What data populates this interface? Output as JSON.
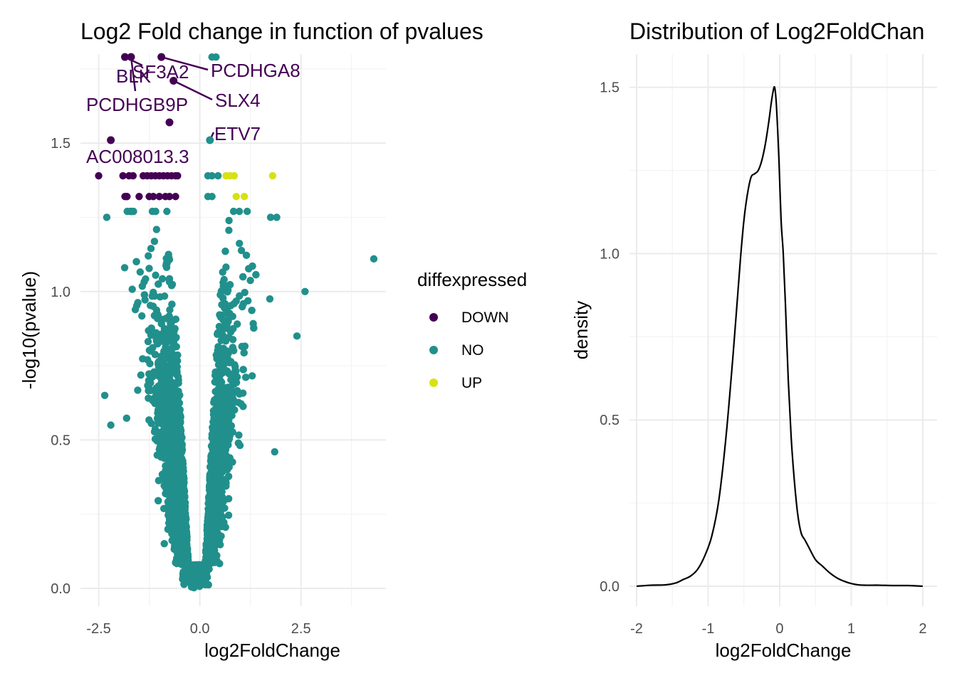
{
  "chart_data": [
    {
      "type": "scatter",
      "title": "Log2 Fold change in function of pvalues",
      "xlabel": "log2FoldChange",
      "ylabel": "-log10(pvalue)",
      "xlim": [
        -2.95,
        4.6
      ],
      "ylim": [
        -0.06,
        1.8
      ],
      "x_ticks": [
        -2.5,
        0.0,
        2.5
      ],
      "x_tick_labels": [
        "-2.5",
        "0.0",
        "2.5"
      ],
      "y_ticks": [
        0.0,
        0.5,
        1.0,
        1.5
      ],
      "y_tick_labels": [
        "0.0",
        "0.5",
        "1.0",
        "1.5"
      ],
      "grid": true,
      "legend": {
        "title": "diffexpressed",
        "placement": "right",
        "entries": [
          {
            "label": "DOWN",
            "color": "#440154"
          },
          {
            "label": "NO",
            "color": "#21908C"
          },
          {
            "label": "UP",
            "color": "#D6E215"
          }
        ]
      },
      "colors": {
        "DOWN": "#440154",
        "NO": "#21908C",
        "UP": "#D6E215"
      },
      "labeled_points": [
        {
          "label": "PCDHGA8",
          "x": -0.95,
          "y": 1.79
        },
        {
          "label": "SF3A2",
          "x": -1.85,
          "y": 1.79
        },
        {
          "label": "BLK",
          "x": -1.7,
          "y": 1.79
        },
        {
          "label": "SLX4",
          "x": -0.65,
          "y": 1.71
        },
        {
          "label": "PCDHGB9P",
          "x": -0.75,
          "y": 1.57
        },
        {
          "label": "ETV7",
          "x": 0.25,
          "y": 1.51,
          "group": "NO"
        },
        {
          "label": "AC008013.3",
          "x": -2.2,
          "y": 1.51
        }
      ],
      "down_points": [
        [
          -2.5,
          1.39
        ],
        [
          -1.9,
          1.39
        ],
        [
          -1.75,
          1.39
        ],
        [
          -1.65,
          1.39
        ],
        [
          -1.4,
          1.39
        ],
        [
          -1.3,
          1.39
        ],
        [
          -1.2,
          1.39
        ],
        [
          -1.1,
          1.39
        ],
        [
          -1.0,
          1.39
        ],
        [
          -0.9,
          1.39
        ],
        [
          -0.8,
          1.39
        ],
        [
          -0.7,
          1.39
        ],
        [
          -0.6,
          1.39
        ],
        [
          -0.55,
          1.39
        ],
        [
          -1.85,
          1.32
        ],
        [
          -1.8,
          1.32
        ],
        [
          -1.5,
          1.32
        ],
        [
          -1.25,
          1.32
        ],
        [
          -1.15,
          1.32
        ],
        [
          -1.0,
          1.32
        ],
        [
          -0.85,
          1.32
        ],
        [
          -0.75,
          1.32
        ],
        [
          -0.6,
          1.32
        ]
      ],
      "up_points": [
        [
          0.65,
          1.39
        ],
        [
          0.75,
          1.39
        ],
        [
          0.85,
          1.39
        ],
        [
          1.8,
          1.39
        ],
        [
          0.9,
          1.32
        ],
        [
          1.1,
          1.32
        ]
      ],
      "no_extreme_points": [
        [
          4.3,
          1.11
        ],
        [
          2.6,
          1.0
        ],
        [
          2.4,
          0.85
        ],
        [
          1.9,
          1.25
        ],
        [
          1.75,
          1.25
        ],
        [
          1.85,
          0.46
        ],
        [
          -2.3,
          1.25
        ],
        [
          -2.35,
          0.65
        ],
        [
          -2.2,
          0.55
        ],
        [
          0.3,
          1.79
        ],
        [
          0.4,
          1.79
        ],
        [
          0.3,
          1.39
        ],
        [
          0.2,
          1.39
        ],
        [
          0.45,
          1.39
        ],
        [
          0.2,
          1.32
        ],
        [
          0.3,
          1.32
        ]
      ],
      "no_cloud_description_free": true
    },
    {
      "type": "line",
      "title": "Distribution of Log2FoldChan",
      "xlabel": "log2FoldChange",
      "ylabel": "density",
      "xlim": [
        -2.1,
        2.2
      ],
      "ylim": [
        -0.06,
        1.6
      ],
      "x_ticks": [
        -2,
        -1,
        0,
        1,
        2
      ],
      "x_tick_labels": [
        "-2",
        "-1",
        "0",
        "1",
        "2"
      ],
      "y_ticks": [
        0.0,
        0.5,
        1.0,
        1.5
      ],
      "y_tick_labels": [
        "0.0",
        "0.5",
        "1.0",
        "1.5"
      ],
      "grid": true,
      "x": [
        -2.0,
        -1.8,
        -1.6,
        -1.45,
        -1.35,
        -1.25,
        -1.15,
        -1.05,
        -0.95,
        -0.85,
        -0.75,
        -0.65,
        -0.55,
        -0.5,
        -0.45,
        -0.4,
        -0.35,
        -0.3,
        -0.25,
        -0.2,
        -0.15,
        -0.12,
        -0.09,
        -0.07,
        -0.05,
        -0.03,
        -0.01,
        0.02,
        0.05,
        0.08,
        0.12,
        0.16,
        0.2,
        0.25,
        0.3,
        0.35,
        0.4,
        0.5,
        0.6,
        0.7,
        0.8,
        0.9,
        1.0,
        1.1,
        1.2,
        1.3,
        1.4,
        1.6,
        1.8,
        2.0
      ],
      "y": [
        0.0,
        0.003,
        0.004,
        0.01,
        0.02,
        0.03,
        0.05,
        0.09,
        0.15,
        0.26,
        0.45,
        0.7,
        0.98,
        1.1,
        1.18,
        1.23,
        1.24,
        1.25,
        1.28,
        1.33,
        1.4,
        1.45,
        1.49,
        1.5,
        1.46,
        1.38,
        1.28,
        1.1,
        1.0,
        0.85,
        0.62,
        0.45,
        0.33,
        0.22,
        0.16,
        0.14,
        0.12,
        0.08,
        0.06,
        0.04,
        0.025,
        0.015,
        0.008,
        0.004,
        0.003,
        0.003,
        0.003,
        0.002,
        0.002,
        0.0
      ]
    }
  ]
}
